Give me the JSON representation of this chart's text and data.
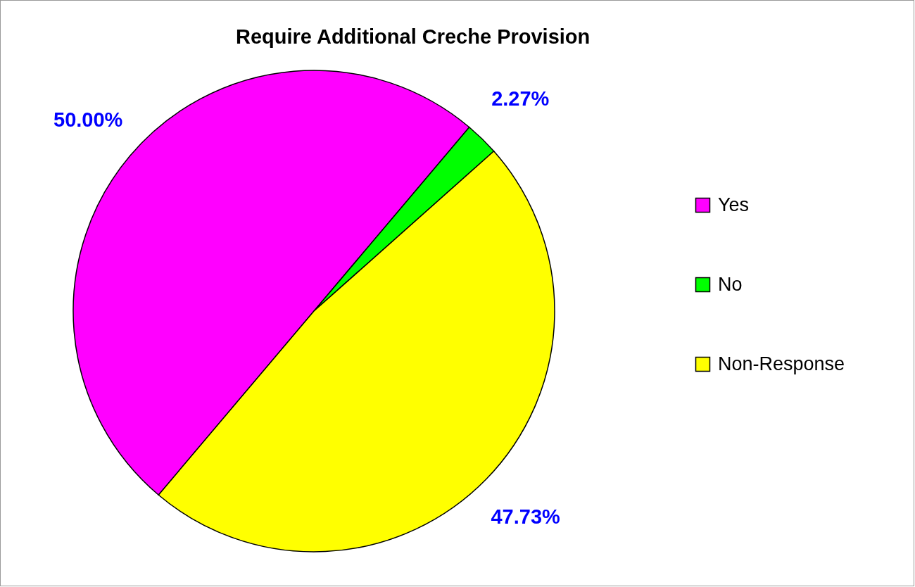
{
  "chart_data": {
    "type": "pie",
    "title": "Require Additional Creche Provision",
    "categories": [
      "Yes",
      "No",
      "Non-Response"
    ],
    "values": [
      50.0,
      2.27,
      47.73
    ],
    "colors": [
      "#ff00ff",
      "#00ff00",
      "#ffff00"
    ],
    "value_labels": [
      "50.00%",
      "2.27%",
      "47.73%"
    ],
    "legend": "right"
  }
}
